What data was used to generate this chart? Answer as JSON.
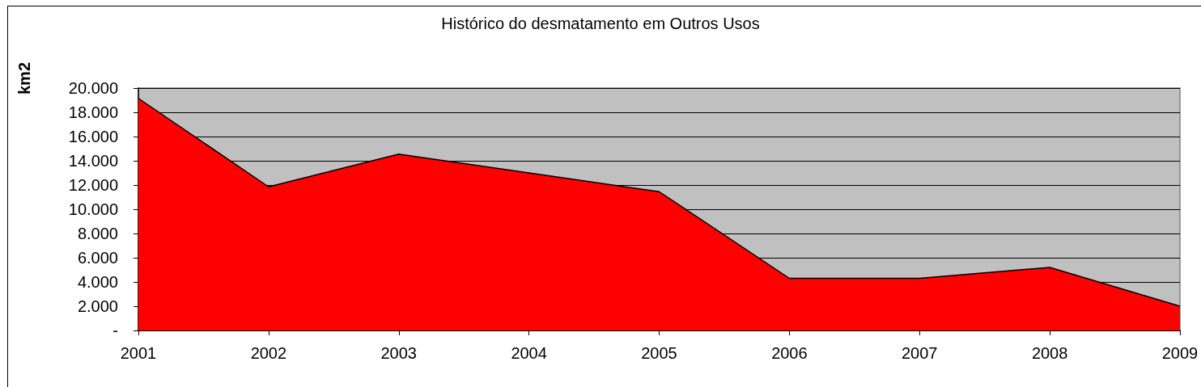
{
  "chart_data": {
    "type": "area",
    "title": "Histórico do desmatamento em Outros Usos",
    "ylabel": "km2",
    "categories": [
      "2001",
      "2002",
      "2003",
      "2004",
      "2005",
      "2006",
      "2007",
      "2008",
      "2009"
    ],
    "series": [
      {
        "color": "#ff0000",
        "values": [
          19150,
          11850,
          14550,
          13000,
          11450,
          4300,
          4300,
          5200,
          2000
        ]
      }
    ],
    "ylim": [
      0,
      20000
    ],
    "yticks": [
      {
        "value": 0,
        "label": "-"
      },
      {
        "value": 2000,
        "label": "2.000"
      },
      {
        "value": 4000,
        "label": "4.000"
      },
      {
        "value": 6000,
        "label": "6.000"
      },
      {
        "value": 8000,
        "label": "8.000"
      },
      {
        "value": 10000,
        "label": "10.000"
      },
      {
        "value": 12000,
        "label": "12.000"
      },
      {
        "value": 14000,
        "label": "14.000"
      },
      {
        "value": 16000,
        "label": "16.000"
      },
      {
        "value": 18000,
        "label": "18.000"
      },
      {
        "value": 20000,
        "label": "20.000"
      }
    ],
    "grid": "y"
  }
}
